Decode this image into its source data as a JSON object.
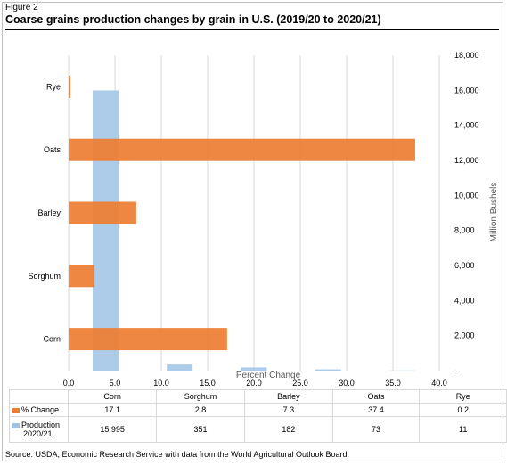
{
  "figure_label": "Figure 2",
  "title": "Coarse grains production changes by grain in U.S. (2019/20 to 2020/21)",
  "source": "Source: USDA, Economic Research Service with data from the World Agricultural Outlook Board.",
  "colors": {
    "pct_change": "#ed7d31",
    "production": "#9dc3e6",
    "grid": "#d9d9d9"
  },
  "chart_data": {
    "type": "bar",
    "categories": [
      "Corn",
      "Sorghum",
      "Barley",
      "Oats",
      "Rye"
    ],
    "series": [
      {
        "name": "% Change",
        "orientation": "horizontal",
        "axis": "bottom",
        "values": [
          17.1,
          2.8,
          7.3,
          37.4,
          0.2
        ]
      },
      {
        "name": "Production 2020/21",
        "orientation": "vertical",
        "axis": "right",
        "values": [
          15995,
          351,
          182,
          73,
          11
        ]
      }
    ],
    "xlabel": "Percent Change",
    "y2label": "Million Bushels",
    "xlim": [
      0,
      40
    ],
    "y2lim": [
      0,
      18000
    ],
    "x_ticks": [
      "0.0",
      "5.0",
      "10.0",
      "15.0",
      "20.0",
      "25.0",
      "30.0",
      "35.0",
      "40.0"
    ],
    "y2_ticks": [
      "-",
      "2,000",
      "4,000",
      "6,000",
      "8,000",
      "10,000",
      "12,000",
      "14,000",
      "16,000",
      "18,000"
    ],
    "grid": true,
    "legend": "table"
  },
  "table": {
    "row1_label": "% Change",
    "row2_label_a": "Production",
    "row2_label_b": "2020/21",
    "headers": [
      "Corn",
      "Sorghum",
      "Barley",
      "Oats",
      "Rye"
    ],
    "pct_change": [
      "17.1",
      "2.8",
      "7.3",
      "37.4",
      "0.2"
    ],
    "production": [
      "15,995",
      "351",
      "182",
      "73",
      "11"
    ]
  }
}
